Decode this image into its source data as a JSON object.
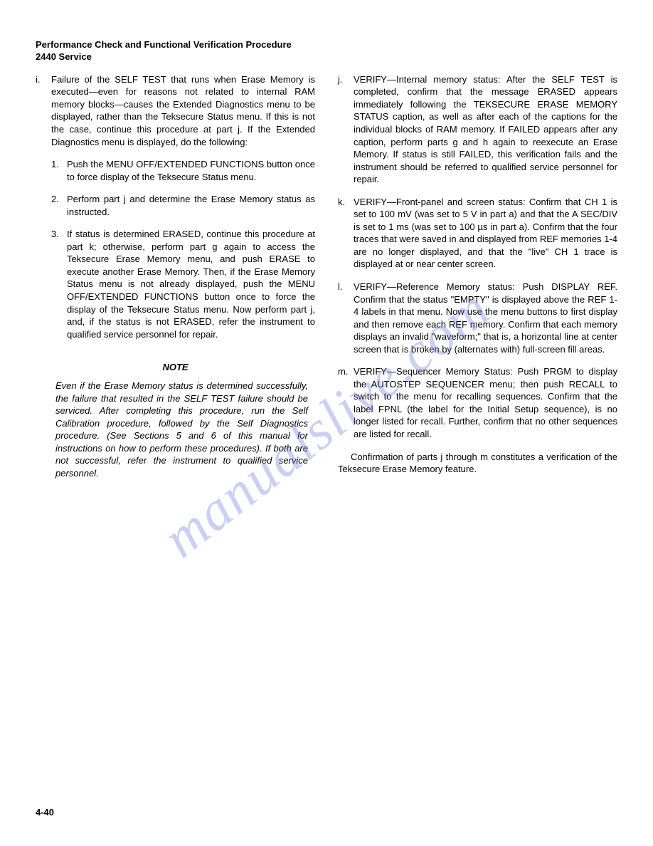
{
  "header": {
    "line1": "Performance Check and Functional Verification Procedure",
    "line2": "2440 Service"
  },
  "watermark": "manualslive.com",
  "pageNumber": "4-40",
  "leftCol": {
    "item_i": {
      "label": "i.",
      "text": "Failure of the SELF TEST that runs when Erase Memory is executed—even for reasons not related to internal RAM memory blocks—causes the Extended Diagnostics menu to be displayed, rather than the Teksecure Status menu. If this is not the case, continue this procedure at part j. If the Extended Diagnostics menu is displayed, do the following:",
      "sub": [
        {
          "label": "1.",
          "text": "Push the MENU OFF/EXTENDED FUNCTIONS button once to force display of the Teksecure Status menu."
        },
        {
          "label": "2.",
          "text": "Perform part j and determine the Erase Memory status as instructed."
        },
        {
          "label": "3.",
          "text": "If status is determined ERASED, continue this procedure at part k; otherwise, perform part g again to access the Teksecure Erase Memory menu, and push ERASE to execute another Erase Memory. Then, if the Erase Memory Status menu is not already displayed, push the MENU OFF/EXTENDED FUNCTIONS button once to force the display of the Teksecure Status menu. Now perform part j, and, if the status is not ERASED, refer the instrument to qualified service personnel for repair."
        }
      ]
    },
    "note": {
      "heading": "NOTE",
      "body": "Even if the Erase Memory status is determined successfully, the failure that resulted in the SELF TEST failure should be serviced. After completing this procedure, run the Self Calibration procedure, followed by the Self Diagnostics procedure. (See Sections 5 and 6 of this manual for instructions on how to perform these procedures). If both are not successful, refer the instrument to qualified service personnel."
    }
  },
  "rightCol": {
    "items": [
      {
        "label": "j.",
        "text": "VERIFY—Internal memory status: After the SELF TEST is completed, confirm that the message ERASED appears immediately following the TEKSECURE ERASE MEMORY STATUS caption, as well as after each of the captions for the individual blocks of RAM memory. If FAILED appears after any caption, perform parts g and h again to reexecute an Erase Memory. If status is still FAILED, this verification fails and the instrument should be referred to qualified service personnel for repair."
      },
      {
        "label": "k.",
        "text": "VERIFY—Front-panel and screen status: Confirm that CH 1 is set to 100 mV (was set to 5 V in part a) and that the A SEC/DIV is set to 1 ms (was set to 100 µs in part a). Confirm that the four traces that were saved in and displayed from REF memories 1-4 are no longer displayed, and that the \"live\" CH 1 trace is displayed at or near center screen."
      },
      {
        "label": "l.",
        "text": "VERIFY—Reference Memory status: Push DISPLAY REF. Confirm that the status \"EMPTY\" is displayed above the REF 1-4 labels in that menu. Now use the menu buttons to first display and then remove each REF memory. Confirm that each memory displays an invalid \"waveform;\" that is, a horizontal line at center screen that is broken by (alternates with) full-screen fill areas."
      },
      {
        "label": "m.",
        "text": "VERIFY—Sequencer Memory Status: Push PRGM to display the AUTOSTEP SEQUENCER menu; then push RECALL to switch to the menu for recalling sequences. Confirm that the label FPNL (the label for the Initial Setup sequence), is no longer listed for recall. Further, confirm that no other sequences are listed for recall."
      }
    ],
    "closing": "Confirmation of parts j through m constitutes a verification of the Teksecure Erase Memory feature."
  }
}
